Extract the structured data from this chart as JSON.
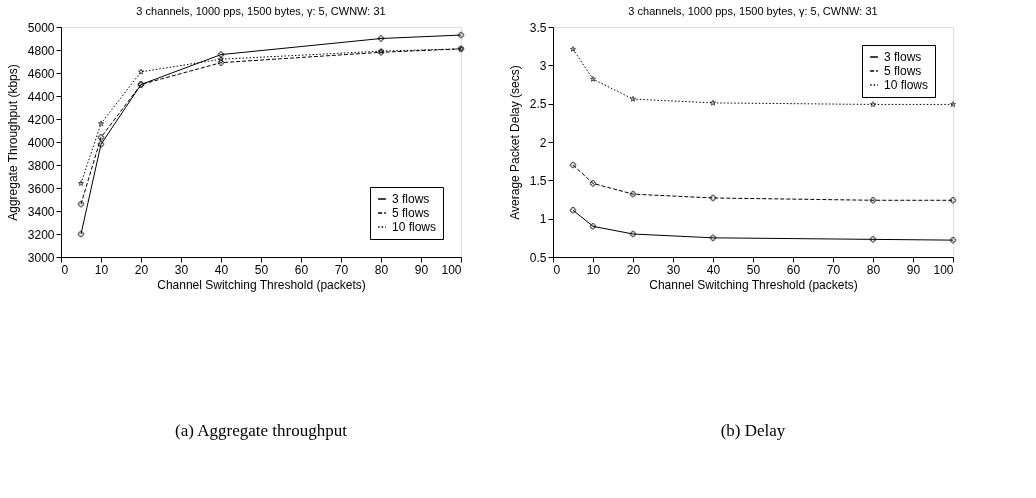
{
  "chart_data": [
    {
      "type": "line",
      "title": "3 channels, 1000 pps, 1500 bytes, γ: 5, CWNW: 31",
      "xlabel": "Channel Switching Threshold (packets)",
      "ylabel": "Aggregate Throughput (kbps)",
      "x": [
        5,
        10,
        20,
        40,
        80,
        100
      ],
      "series": [
        {
          "name": "3 flows",
          "color": "#000000",
          "marker": "cross",
          "line_style": "solid",
          "values": [
            3200,
            3980,
            4500,
            4760,
            4900,
            4930
          ]
        },
        {
          "name": "5 flows",
          "color": "#000000",
          "marker": "cross",
          "line_style": "dashed",
          "values": [
            3460,
            4040,
            4500,
            4690,
            4780,
            4810
          ]
        },
        {
          "name": "10 flows",
          "color": "#000000",
          "marker": "star",
          "line_style": "dotted",
          "values": [
            3640,
            4160,
            4610,
            4720,
            4790,
            4810
          ]
        }
      ],
      "xlim": [
        0,
        100
      ],
      "xticks": [
        0,
        10,
        20,
        30,
        40,
        50,
        60,
        70,
        80,
        90,
        100
      ],
      "ylim": [
        3000,
        5000
      ],
      "yticks": [
        3000,
        3200,
        3400,
        3600,
        3800,
        4000,
        4200,
        4400,
        4600,
        4800,
        5000
      ],
      "grid": false,
      "legend": "bottom right",
      "annotations": [
        "(a) Aggregate throughput"
      ]
    },
    {
      "type": "line",
      "title": "3 channels, 1000 pps, 1500 bytes, γ: 5, CWNW: 31",
      "xlabel": "Channel Switching Threshold (packets)",
      "ylabel": "Average Packet Delay (secs)",
      "x": [
        5,
        10,
        20,
        40,
        80,
        100
      ],
      "series": [
        {
          "name": "3 flows",
          "color": "#000000",
          "marker": "cross",
          "line_style": "solid",
          "values": [
            1.11,
            0.9,
            0.8,
            0.75,
            0.73,
            0.72
          ]
        },
        {
          "name": "5 flows",
          "color": "#000000",
          "marker": "cross",
          "line_style": "dashed",
          "values": [
            1.7,
            1.46,
            1.32,
            1.27,
            1.24,
            1.24
          ]
        },
        {
          "name": "10 flows",
          "color": "#000000",
          "marker": "star",
          "line_style": "dotted",
          "values": [
            3.21,
            2.82,
            2.56,
            2.51,
            2.49,
            2.49
          ]
        }
      ],
      "xlim": [
        0,
        100
      ],
      "xticks": [
        0,
        10,
        20,
        30,
        40,
        50,
        60,
        70,
        80,
        90,
        100
      ],
      "ylim": [
        0.5,
        3.5
      ],
      "yticks": [
        0.5,
        1,
        1.5,
        2,
        2.5,
        3,
        3.5
      ],
      "grid": false,
      "legend": "top right",
      "annotations": [
        "(b) Delay"
      ]
    }
  ]
}
